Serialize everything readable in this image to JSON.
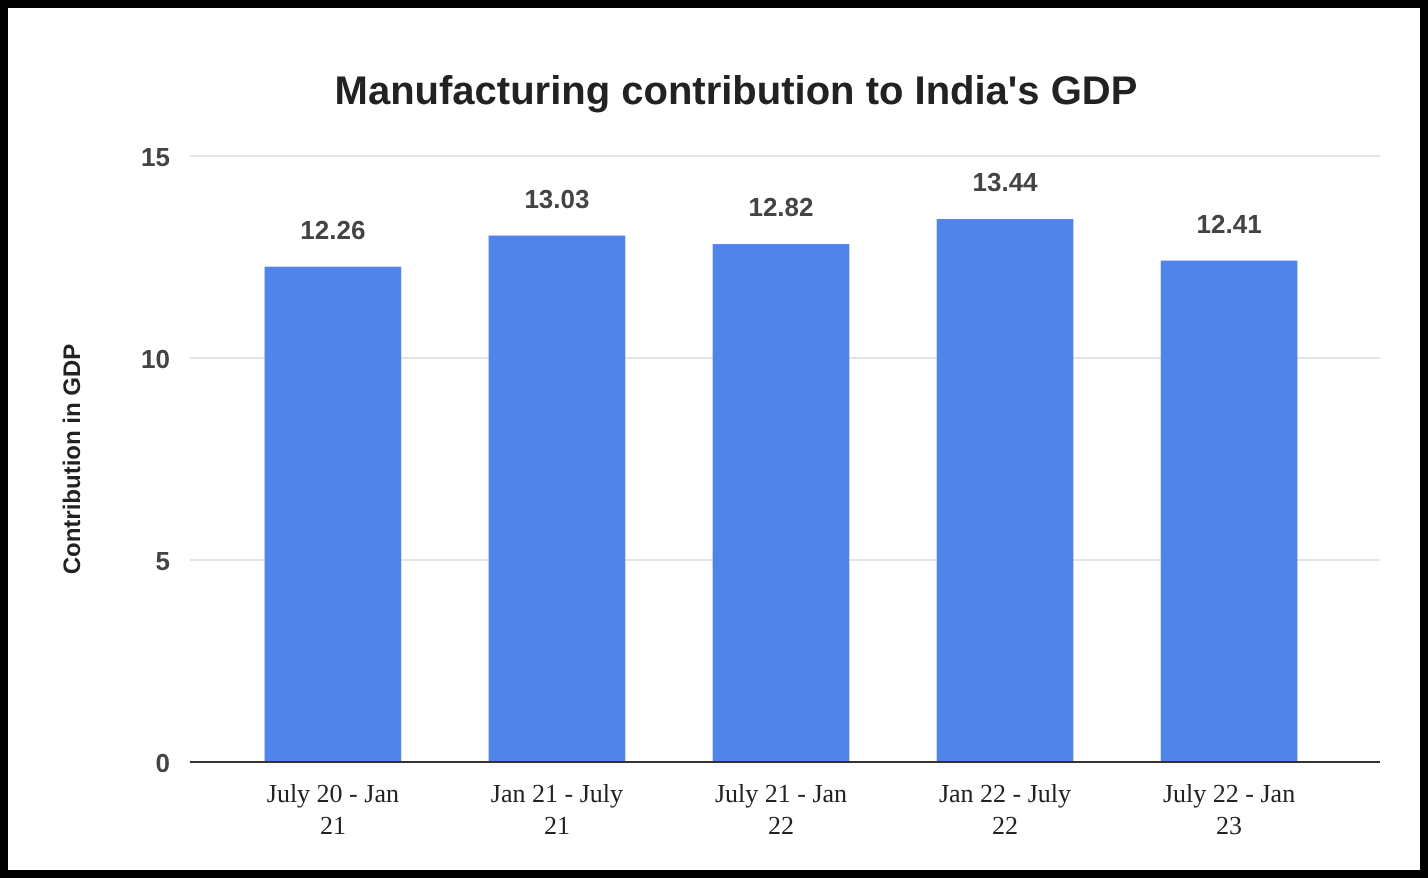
{
  "chart_data": {
    "type": "bar",
    "title": "Manufacturing contribution to India's GDP",
    "ylabel": "Contribution in GDP",
    "categories": [
      "July 20 - Jan 21",
      "Jan 21 - July 21",
      "July 21 - Jan 22",
      "Jan 22 - July 22",
      "July 22 - Jan 23"
    ],
    "values": [
      12.26,
      13.03,
      12.82,
      13.44,
      12.41
    ],
    "color": "#5183ea",
    "ylim": [
      0,
      15
    ],
    "yticks": [
      0,
      5,
      10,
      15
    ],
    "grid": "y",
    "data_labels": true
  }
}
